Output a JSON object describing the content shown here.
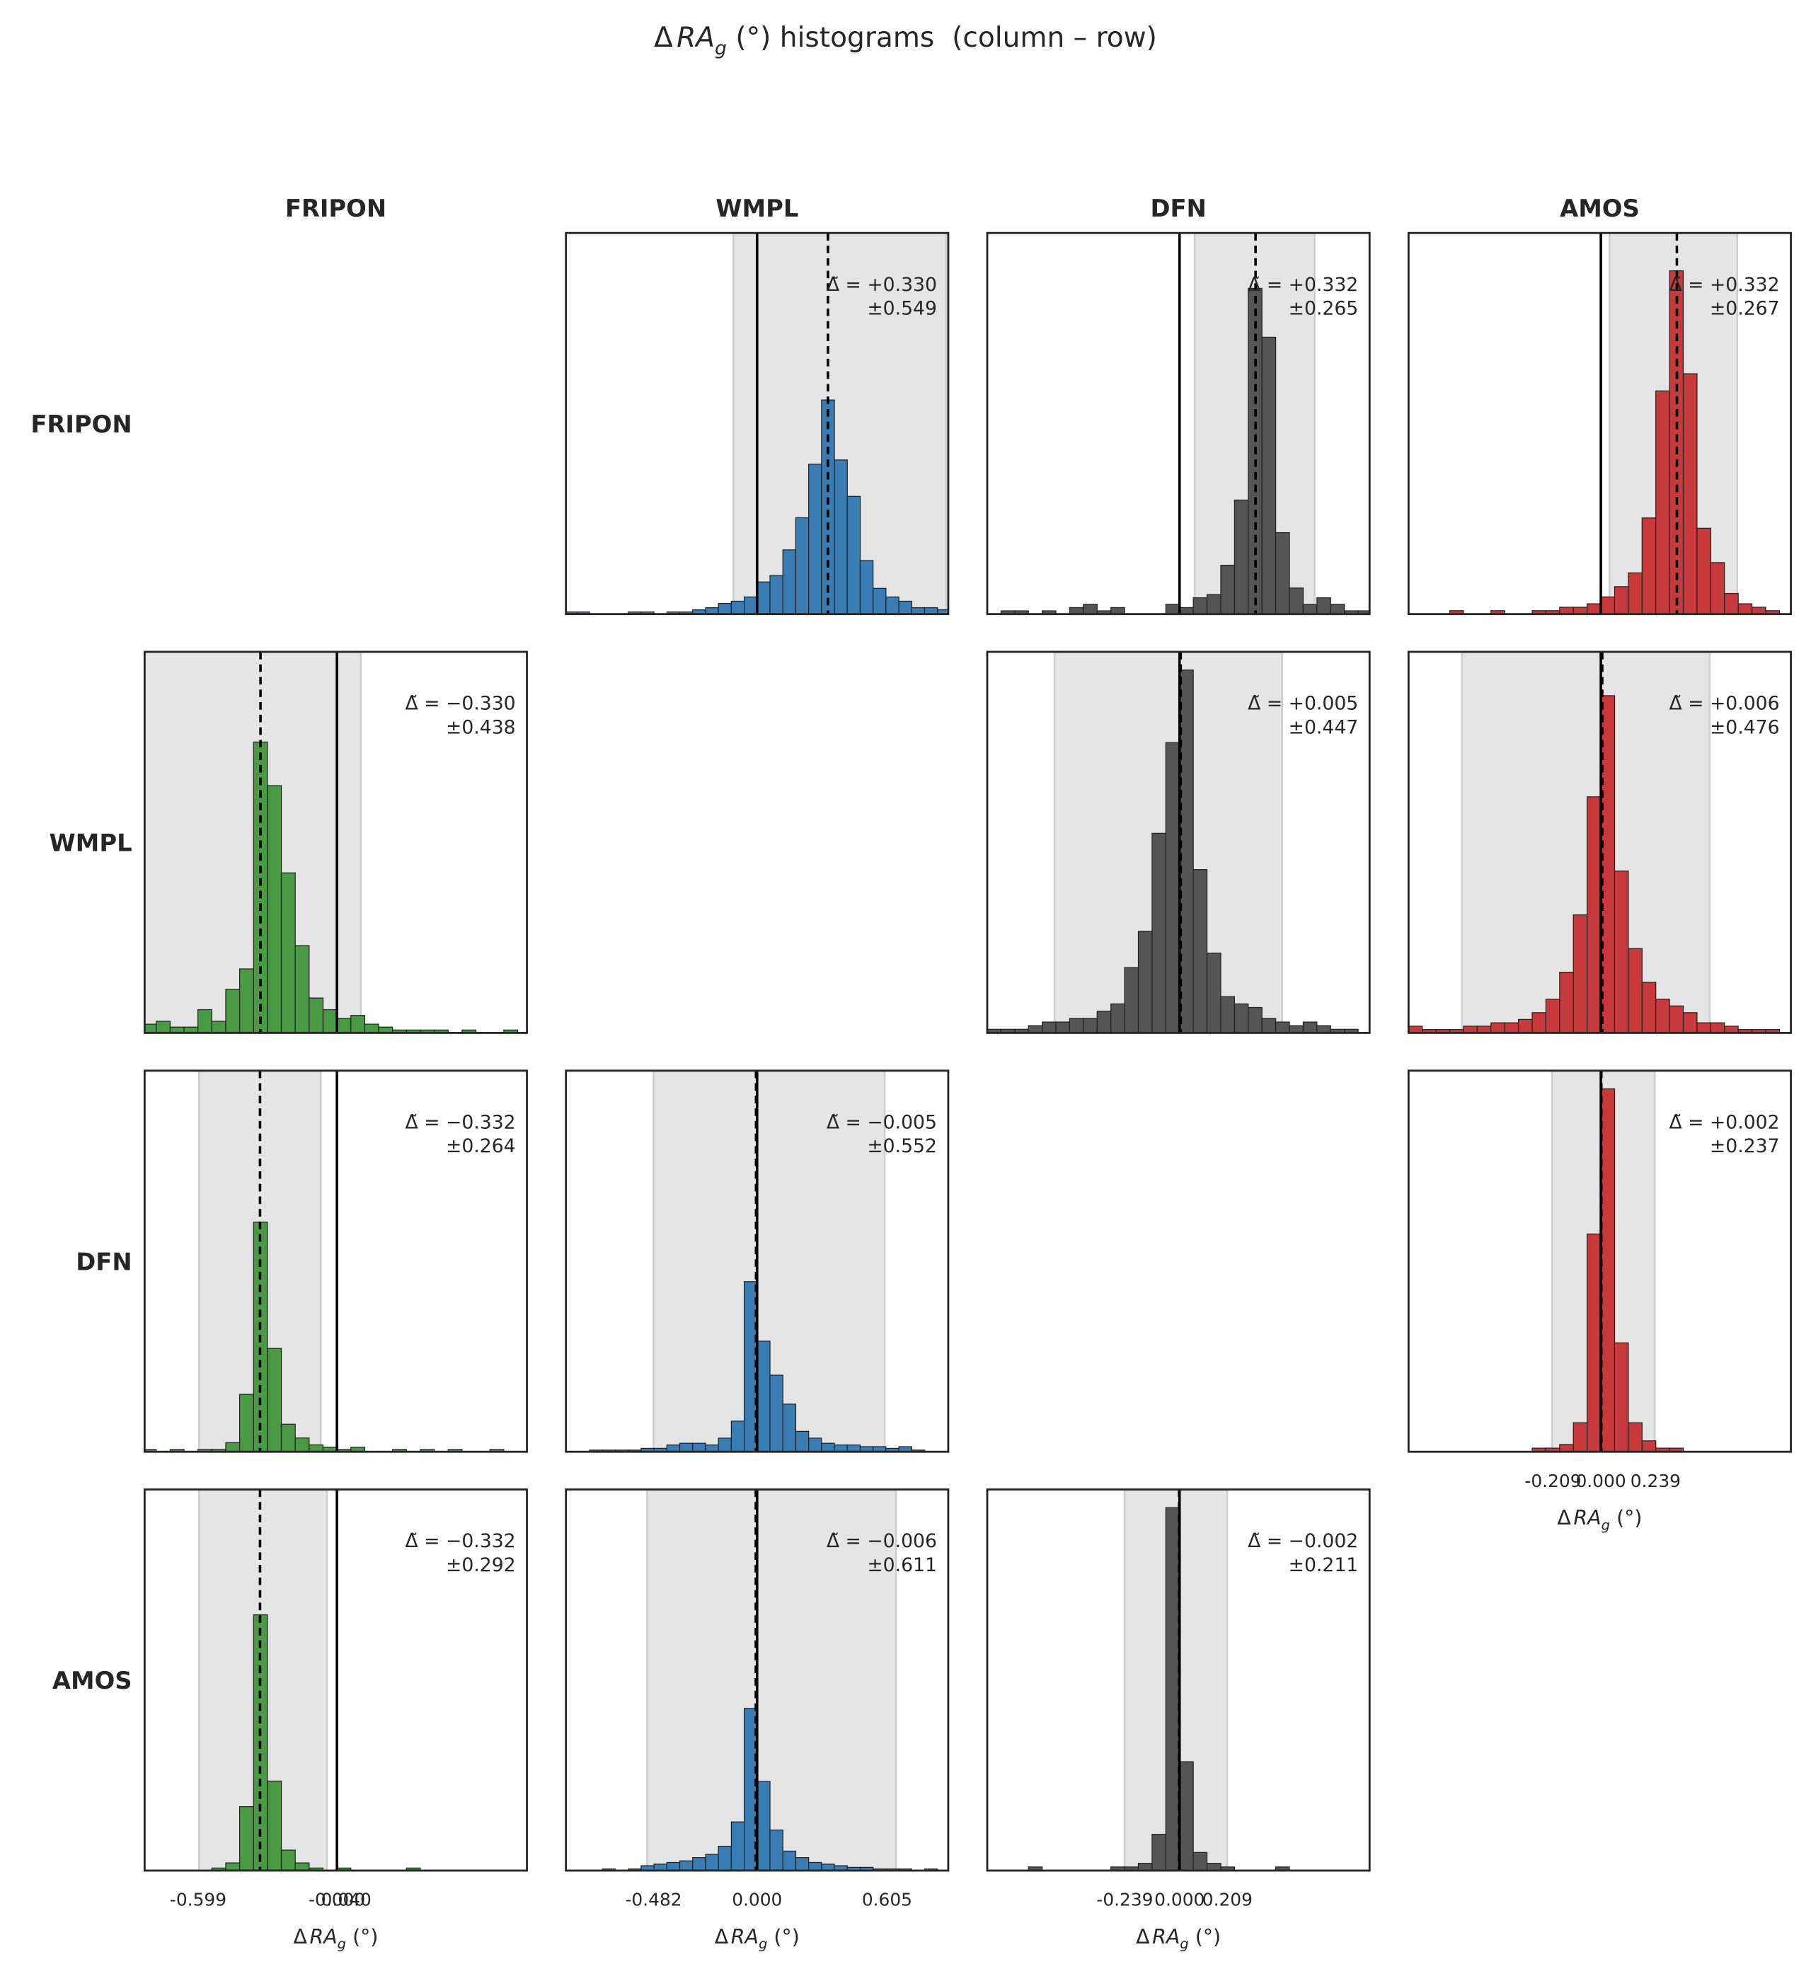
{
  "title": {
    "symbol": "Δ",
    "variable": "RA",
    "subscript": "g",
    "rest": " (°) histograms  (column – row)"
  },
  "columns": [
    "FRIPON",
    "WMPL",
    "DFN",
    "AMOS"
  ],
  "rows": [
    "FRIPON",
    "WMPL",
    "DFN",
    "AMOS"
  ],
  "reference_line": 0,
  "chart_data": [
    {
      "type": "histogram",
      "color": "#3a7db5",
      "xlim": [
        -0.89,
        0.89
      ],
      "ylim": [
        0,
        178
      ],
      "median": 0.33,
      "shade": [
        -0.11,
        0.88
      ],
      "annotation": [
        "Δ̃ = +0.330",
        "±0.549"
      ],
      "bins": [
        -0.9,
        -0.84,
        -0.78,
        -0.72,
        -0.66,
        -0.6,
        -0.54,
        -0.48,
        -0.42,
        -0.36,
        -0.3,
        -0.24,
        -0.18,
        -0.12,
        -0.06,
        0,
        0.06,
        0.12,
        0.18,
        0.24,
        0.3,
        0.36,
        0.42,
        0.48,
        0.54,
        0.6,
        0.66,
        0.72,
        0.78,
        0.84,
        0.9
      ],
      "counts": [
        1,
        1,
        0,
        0,
        0,
        1,
        1,
        0,
        1,
        1,
        2,
        3,
        5,
        6,
        8,
        15,
        18,
        30,
        45,
        70,
        100,
        72,
        55,
        25,
        12,
        8,
        6,
        3,
        3,
        2
      ]
    },
    {
      "type": "histogram",
      "color": "#555555",
      "xlim": [
        -0.84,
        0.83
      ],
      "ylim": [
        0,
        117
      ],
      "median": 0.332,
      "shade": [
        0.066,
        0.59
      ],
      "annotation": [
        "Δ̃ = +0.332",
        "±0.265"
      ],
      "bins": [
        -0.84,
        -0.78,
        -0.72,
        -0.66,
        -0.6,
        -0.54,
        -0.48,
        -0.42,
        -0.36,
        -0.3,
        -0.24,
        -0.18,
        -0.12,
        -0.06,
        0,
        0.06,
        0.12,
        0.18,
        0.24,
        0.3,
        0.36,
        0.42,
        0.48,
        0.54,
        0.6,
        0.66,
        0.72,
        0.78,
        0.84
      ],
      "counts": [
        0,
        1,
        1,
        0,
        1,
        0,
        2,
        3,
        1,
        2,
        0,
        0,
        0,
        3,
        2,
        5,
        6,
        15,
        35,
        100,
        85,
        25,
        8,
        3,
        5,
        3,
        1,
        1
      ]
    },
    {
      "type": "histogram",
      "color": "#c8393c",
      "xlim": [
        -0.84,
        0.83
      ],
      "ylim": [
        0,
        111
      ],
      "median": 0.332,
      "shade": [
        0.038,
        0.596
      ],
      "annotation": [
        "Δ̃ = +0.332",
        "±0.267"
      ],
      "bins": [
        -0.84,
        -0.78,
        -0.72,
        -0.66,
        -0.6,
        -0.54,
        -0.48,
        -0.42,
        -0.36,
        -0.3,
        -0.24,
        -0.18,
        -0.12,
        -0.06,
        0,
        0.06,
        0.12,
        0.18,
        0.24,
        0.3,
        0.36,
        0.42,
        0.48,
        0.54,
        0.6,
        0.66,
        0.72,
        0.78,
        0.84
      ],
      "counts": [
        0,
        0,
        0,
        1,
        0,
        0,
        1,
        0,
        0,
        1,
        1,
        2,
        2,
        3,
        5,
        8,
        12,
        28,
        65,
        100,
        70,
        25,
        15,
        6,
        3,
        2,
        1,
        0
      ]
    },
    {
      "type": "histogram",
      "color": "#4a9a43",
      "xlim": [
        -0.83,
        0.82
      ],
      "ylim": [
        0,
        131
      ],
      "median": -0.33,
      "shade": [
        -0.83,
        0.103
      ],
      "annotation": [
        "Δ̃ = −0.330",
        "±0.438"
      ],
      "bins": [
        -0.84,
        -0.78,
        -0.72,
        -0.66,
        -0.6,
        -0.54,
        -0.48,
        -0.42,
        -0.36,
        -0.3,
        -0.24,
        -0.18,
        -0.12,
        -0.06,
        0,
        0.06,
        0.12,
        0.18,
        0.24,
        0.3,
        0.36,
        0.42,
        0.48,
        0.54,
        0.6,
        0.66,
        0.72,
        0.78,
        0.84
      ],
      "counts": [
        3,
        4,
        2,
        2,
        8,
        4,
        15,
        22,
        100,
        85,
        55,
        30,
        12,
        8,
        5,
        6,
        3,
        2,
        1,
        1,
        1,
        1,
        0,
        1,
        0,
        0,
        1,
        0
      ]
    },
    {
      "type": "histogram",
      "color": "#555555",
      "xlim": [
        -0.84,
        0.83
      ],
      "ylim": [
        0,
        105
      ],
      "median": 0.005,
      "shade": [
        -0.546,
        0.448
      ],
      "annotation": [
        "Δ̃ = +0.005",
        "±0.447"
      ],
      "bins": [
        -0.84,
        -0.78,
        -0.72,
        -0.66,
        -0.6,
        -0.54,
        -0.48,
        -0.42,
        -0.36,
        -0.3,
        -0.24,
        -0.18,
        -0.12,
        -0.06,
        0,
        0.06,
        0.12,
        0.18,
        0.24,
        0.3,
        0.36,
        0.42,
        0.48,
        0.54,
        0.6,
        0.66,
        0.72,
        0.78,
        0.84
      ],
      "counts": [
        1,
        1,
        1,
        2,
        3,
        3,
        4,
        4,
        6,
        8,
        18,
        28,
        55,
        80,
        100,
        45,
        22,
        10,
        8,
        7,
        4,
        3,
        2,
        3,
        2,
        1,
        1,
        0
      ]
    },
    {
      "type": "histogram",
      "color": "#c8393c",
      "xlim": [
        -0.84,
        0.83
      ],
      "ylim": [
        0,
        113
      ],
      "median": 0.006,
      "shade": [
        -0.607,
        0.475
      ],
      "annotation": [
        "Δ̃ = +0.006",
        "±0.476"
      ],
      "bins": [
        -0.84,
        -0.78,
        -0.72,
        -0.66,
        -0.6,
        -0.54,
        -0.48,
        -0.42,
        -0.36,
        -0.3,
        -0.24,
        -0.18,
        -0.12,
        -0.06,
        0,
        0.06,
        0.12,
        0.18,
        0.24,
        0.3,
        0.36,
        0.42,
        0.48,
        0.54,
        0.6,
        0.66,
        0.72,
        0.78,
        0.84
      ],
      "counts": [
        2,
        1,
        1,
        1,
        2,
        2,
        3,
        3,
        4,
        6,
        10,
        18,
        35,
        70,
        100,
        48,
        25,
        15,
        10,
        8,
        6,
        3,
        3,
        2,
        1,
        1,
        1,
        0
      ]
    },
    {
      "type": "histogram",
      "color": "#4a9a43",
      "xlim": [
        -0.83,
        0.82
      ],
      "ylim": [
        0,
        166
      ],
      "median": -0.332,
      "shade": [
        -0.595,
        -0.07
      ],
      "annotation": [
        "Δ̃ = −0.332",
        "±0.264"
      ],
      "bins": [
        -0.84,
        -0.78,
        -0.72,
        -0.66,
        -0.6,
        -0.54,
        -0.48,
        -0.42,
        -0.36,
        -0.3,
        -0.24,
        -0.18,
        -0.12,
        -0.06,
        0,
        0.06,
        0.12,
        0.18,
        0.24,
        0.3,
        0.36,
        0.42,
        0.48,
        0.54,
        0.6,
        0.66,
        0.72,
        0.78,
        0.84
      ],
      "counts": [
        1,
        0,
        1,
        0,
        1,
        1,
        4,
        25,
        100,
        45,
        12,
        6,
        3,
        2,
        1,
        2,
        0,
        0,
        1,
        0,
        1,
        0,
        1,
        0,
        0,
        1,
        0,
        0
      ]
    },
    {
      "type": "histogram",
      "color": "#3a7db5",
      "xlim": [
        -0.89,
        0.89
      ],
      "ylim": [
        0,
        224
      ],
      "median": -0.005,
      "shade": [
        -0.482,
        0.594
      ],
      "annotation": [
        "Δ̃ = −0.005",
        "±0.552"
      ],
      "bins": [
        -0.9,
        -0.84,
        -0.78,
        -0.72,
        -0.66,
        -0.6,
        -0.54,
        -0.48,
        -0.42,
        -0.36,
        -0.3,
        -0.24,
        -0.18,
        -0.12,
        -0.06,
        0,
        0.06,
        0.12,
        0.18,
        0.24,
        0.3,
        0.36,
        0.42,
        0.48,
        0.54,
        0.6,
        0.66,
        0.72,
        0.78,
        0.84,
        0.9
      ],
      "counts": [
        0,
        0,
        1,
        1,
        1,
        1,
        2,
        2,
        4,
        5,
        5,
        4,
        8,
        18,
        100,
        65,
        45,
        28,
        12,
        8,
        5,
        4,
        4,
        3,
        3,
        2,
        3,
        1,
        0,
        0
      ]
    },
    {
      "type": "histogram",
      "color": "#c8393c",
      "xlim": [
        -0.84,
        0.83
      ],
      "ylim": [
        0,
        105
      ],
      "median": 0.002,
      "shade": [
        -0.213,
        0.235
      ],
      "annotation": [
        "Δ̃ = +0.002",
        "±0.237"
      ],
      "bins": [
        -0.84,
        -0.78,
        -0.72,
        -0.66,
        -0.6,
        -0.54,
        -0.48,
        -0.42,
        -0.36,
        -0.3,
        -0.24,
        -0.18,
        -0.12,
        -0.06,
        0,
        0.06,
        0.12,
        0.18,
        0.24,
        0.3,
        0.36,
        0.42,
        0.48,
        0.54,
        0.6,
        0.66,
        0.72,
        0.78,
        0.84
      ],
      "counts": [
        0,
        0,
        0,
        0,
        0,
        0,
        0,
        0,
        0,
        1,
        1,
        2,
        8,
        60,
        100,
        30,
        8,
        3,
        1,
        1,
        0,
        0,
        0,
        0,
        0,
        0,
        0,
        0
      ],
      "xticks": [
        -0.209,
        {
          "value": 0,
          "label": "0.000"
        },
        0.239
      ],
      "xlabel": {
        "symbol": "Δ",
        "variable": "RA",
        "subscript": "g",
        "rest": " (°)"
      }
    },
    {
      "type": "histogram",
      "color": "#4a9a43",
      "xlim": [
        -0.83,
        0.82
      ],
      "ylim": [
        0,
        149
      ],
      "median": -0.332,
      "shade": [
        -0.595,
        -0.043
      ],
      "annotation": [
        "Δ̃ = −0.332",
        "±0.292"
      ],
      "bins": [
        -0.84,
        -0.78,
        -0.72,
        -0.66,
        -0.6,
        -0.54,
        -0.48,
        -0.42,
        -0.36,
        -0.3,
        -0.24,
        -0.18,
        -0.12,
        -0.06,
        0,
        0.06,
        0.12,
        0.18,
        0.24,
        0.3,
        0.36,
        0.42,
        0.48,
        0.54,
        0.6,
        0.66,
        0.72,
        0.78,
        0.84
      ],
      "counts": [
        0,
        0,
        0,
        0,
        0,
        1,
        3,
        25,
        100,
        35,
        8,
        3,
        1,
        0,
        1,
        0,
        0,
        0,
        0,
        1,
        0,
        0,
        0,
        0,
        0,
        0,
        0,
        0
      ],
      "xticks": [
        -0.599,
        {
          "value": 0,
          "label": "-0.000"
        },
        {
          "value": 0.04,
          "label": "0.040"
        }
      ],
      "xlabel": {
        "symbol": "Δ",
        "variable": "RA",
        "subscript": "g",
        "rest": " (°)"
      }
    },
    {
      "type": "histogram",
      "color": "#3a7db5",
      "xlim": [
        -0.89,
        0.89
      ],
      "ylim": [
        0,
        235
      ],
      "median": -0.006,
      "shade": [
        -0.512,
        0.647
      ],
      "annotation": [
        "Δ̃ = −0.006",
        "±0.611"
      ],
      "bins": [
        -0.9,
        -0.84,
        -0.78,
        -0.72,
        -0.66,
        -0.6,
        -0.54,
        -0.48,
        -0.42,
        -0.36,
        -0.3,
        -0.24,
        -0.18,
        -0.12,
        -0.06,
        0,
        0.06,
        0.12,
        0.18,
        0.24,
        0.3,
        0.36,
        0.42,
        0.48,
        0.54,
        0.6,
        0.66,
        0.72,
        0.78,
        0.84,
        0.9
      ],
      "counts": [
        0,
        0,
        0,
        1,
        0,
        1,
        3,
        4,
        5,
        6,
        8,
        10,
        15,
        30,
        100,
        55,
        25,
        12,
        8,
        5,
        4,
        3,
        2,
        2,
        1,
        1,
        1,
        0,
        1,
        0
      ],
      "xticks": [
        -0.482,
        {
          "value": 0,
          "label": "0.000"
        },
        0.605
      ],
      "xlabel": {
        "symbol": "Δ",
        "variable": "RA",
        "subscript": "g",
        "rest": " (°)"
      }
    },
    {
      "type": "histogram",
      "color": "#555555",
      "xlim": [
        -0.84,
        0.83
      ],
      "ylim": [
        0,
        105
      ],
      "median": -0.002,
      "shade": [
        -0.24,
        0.208
      ],
      "annotation": [
        "Δ̃ = −0.002",
        "±0.211"
      ],
      "bins": [
        -0.84,
        -0.78,
        -0.72,
        -0.66,
        -0.6,
        -0.54,
        -0.48,
        -0.42,
        -0.36,
        -0.3,
        -0.24,
        -0.18,
        -0.12,
        -0.06,
        0,
        0.06,
        0.12,
        0.18,
        0.24,
        0.3,
        0.36,
        0.42,
        0.48,
        0.54,
        0.6,
        0.66,
        0.72,
        0.78,
        0.84
      ],
      "counts": [
        0,
        0,
        0,
        1,
        0,
        0,
        0,
        0,
        0,
        1,
        1,
        2,
        10,
        100,
        30,
        5,
        2,
        1,
        0,
        0,
        0,
        1,
        0,
        0,
        0,
        0,
        0,
        0
      ],
      "xticks": [
        -0.239,
        {
          "value": 0,
          "label": "0.000"
        },
        0.209
      ],
      "xlabel": {
        "symbol": "Δ",
        "variable": "RA",
        "subscript": "g",
        "rest": " (°)"
      }
    }
  ]
}
